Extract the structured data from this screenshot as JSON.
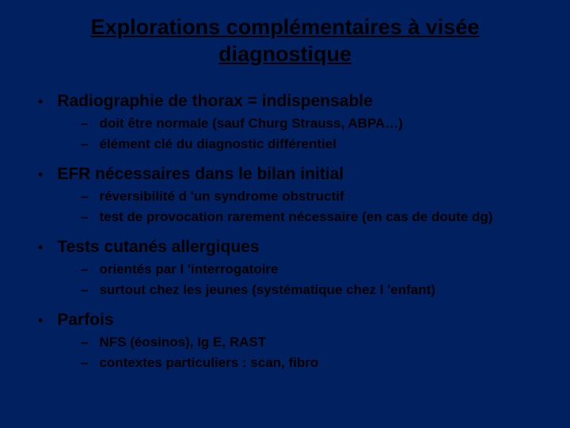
{
  "background_color": "#002060",
  "text_color": "#000000",
  "title_fontsize": 27,
  "level1_fontsize": 21,
  "level2_fontsize": 17,
  "title": "Explorations complémentaires à visée diagnostique",
  "bullets": [
    {
      "text": "Radiographie de thorax = indispensable",
      "subs": [
        "doit être normale (sauf Churg Strauss, ABPA…)",
        "élément clé du diagnostic différentiel"
      ]
    },
    {
      "text": "EFR nécessaires dans le bilan initial",
      "subs": [
        "réversibilité d 'un syndrome obstructif",
        "test de provocation rarement nécessaire (en cas de doute dg)"
      ]
    },
    {
      "text": "Tests cutanés allergiques",
      "subs": [
        "orientés par l 'interrogatoire",
        "surtout chez les jeunes (systématique chez l 'enfant)"
      ]
    },
    {
      "text": "Parfois",
      "subs": [
        "NFS (éosinos), Ig E, RAST",
        "contextes particuliers : scan, fibro"
      ]
    }
  ]
}
